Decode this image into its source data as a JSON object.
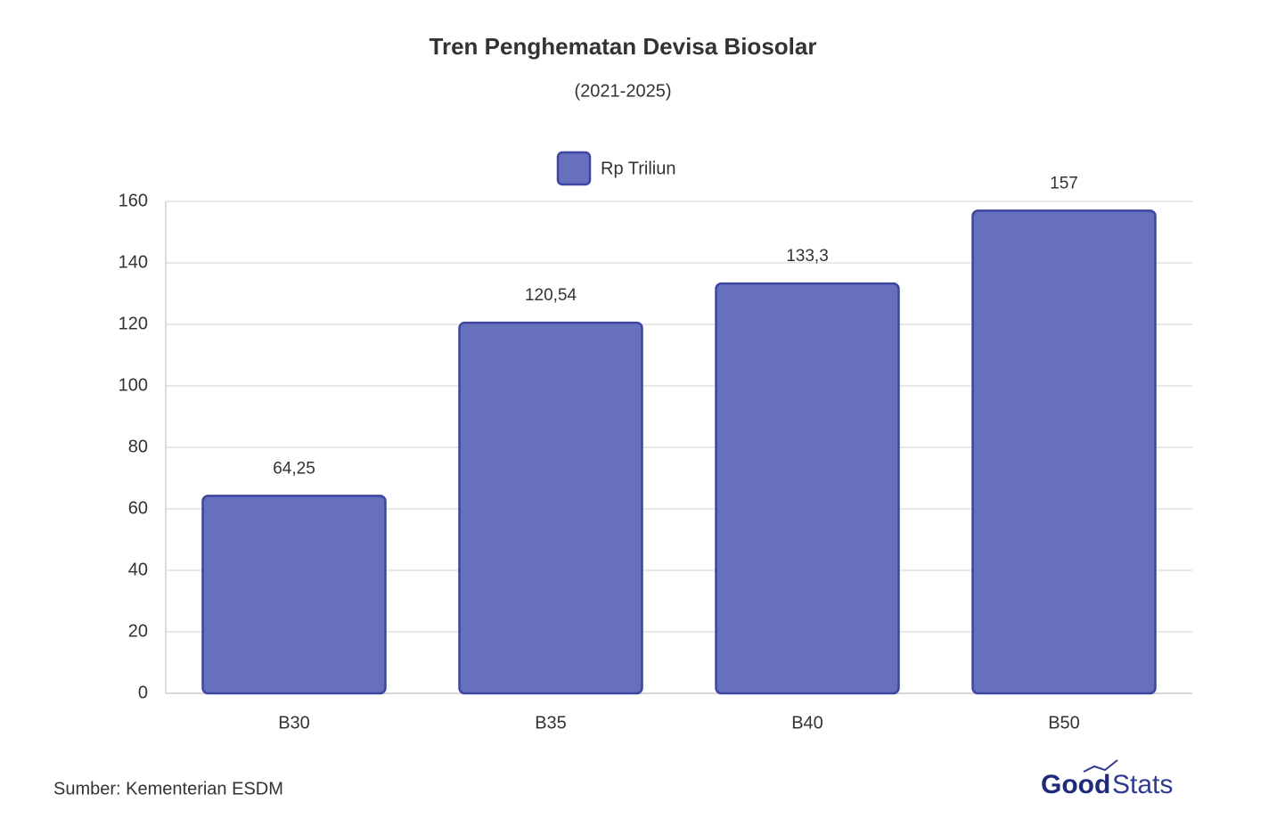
{
  "chart_data": {
    "type": "bar",
    "title": "Tren Penghematan Devisa Biosolar",
    "subtitle": "(2021-2025)",
    "categories": [
      "B30",
      "B35",
      "B40",
      "B50"
    ],
    "series": [
      {
        "name": "Rp Triliun",
        "color": "#6770bd",
        "values": [
          64.25,
          120.54,
          133.3,
          157
        ],
        "value_labels": [
          "64,25",
          "120,54",
          "133,3",
          "157"
        ]
      }
    ],
    "ylim": [
      0,
      160
    ],
    "yticks": [
      0,
      20,
      40,
      60,
      80,
      100,
      120,
      140,
      160
    ],
    "grid": true,
    "legend": "top",
    "source": "Sumber: Kementerian ESDM",
    "logo_bold": "Good",
    "logo_light": "Stats"
  }
}
